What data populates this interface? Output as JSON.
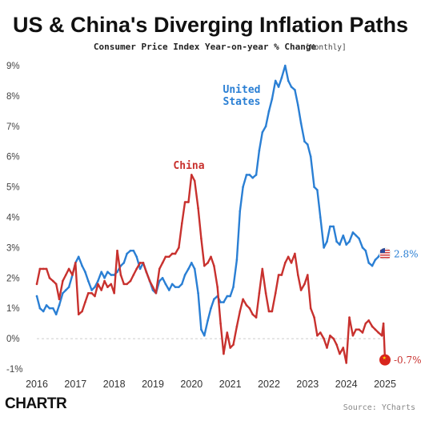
{
  "chart_data": {
    "type": "line",
    "title": "US & China's Diverging Inflation Paths",
    "subtitle": "Consumer Price Index Year-on-year % Change",
    "subtitle_note": "[Monthly]",
    "ylim": [
      -1,
      9
    ],
    "y_ticks": [
      "9%",
      "8%",
      "7%",
      "6%",
      "5%",
      "4%",
      "3%",
      "2%",
      "1%",
      "0%",
      "-1%"
    ],
    "x_ticks": [
      "2016",
      "2017",
      "2018",
      "2019",
      "2020",
      "2021",
      "2022",
      "2023",
      "2024",
      "2025"
    ],
    "grid": false,
    "series": [
      {
        "name": "United States",
        "label_lines": [
          "United",
          "States"
        ],
        "color": "#2a7fd4",
        "end_label": "2.8%",
        "points": [
          [
            2016.0,
            1.4
          ],
          [
            2016.08,
            1.0
          ],
          [
            2016.17,
            0.9
          ],
          [
            2016.25,
            1.1
          ],
          [
            2016.33,
            1.0
          ],
          [
            2016.42,
            1.0
          ],
          [
            2016.5,
            0.8
          ],
          [
            2016.58,
            1.1
          ],
          [
            2016.67,
            1.5
          ],
          [
            2016.75,
            1.6
          ],
          [
            2016.83,
            1.7
          ],
          [
            2016.92,
            2.1
          ],
          [
            2017.0,
            2.5
          ],
          [
            2017.08,
            2.7
          ],
          [
            2017.17,
            2.4
          ],
          [
            2017.25,
            2.2
          ],
          [
            2017.33,
            1.9
          ],
          [
            2017.42,
            1.6
          ],
          [
            2017.5,
            1.7
          ],
          [
            2017.58,
            1.9
          ],
          [
            2017.67,
            2.2
          ],
          [
            2017.75,
            2.0
          ],
          [
            2017.83,
            2.2
          ],
          [
            2017.92,
            2.1
          ],
          [
            2018.0,
            2.1
          ],
          [
            2018.08,
            2.2
          ],
          [
            2018.17,
            2.4
          ],
          [
            2018.25,
            2.5
          ],
          [
            2018.33,
            2.8
          ],
          [
            2018.42,
            2.9
          ],
          [
            2018.5,
            2.9
          ],
          [
            2018.58,
            2.7
          ],
          [
            2018.67,
            2.3
          ],
          [
            2018.75,
            2.5
          ],
          [
            2018.83,
            2.2
          ],
          [
            2018.92,
            1.9
          ],
          [
            2019.0,
            1.6
          ],
          [
            2019.08,
            1.5
          ],
          [
            2019.17,
            1.9
          ],
          [
            2019.25,
            2.0
          ],
          [
            2019.33,
            1.8
          ],
          [
            2019.42,
            1.6
          ],
          [
            2019.5,
            1.8
          ],
          [
            2019.58,
            1.7
          ],
          [
            2019.67,
            1.7
          ],
          [
            2019.75,
            1.8
          ],
          [
            2019.83,
            2.1
          ],
          [
            2019.92,
            2.3
          ],
          [
            2020.0,
            2.5
          ],
          [
            2020.08,
            2.3
          ],
          [
            2020.17,
            1.5
          ],
          [
            2020.25,
            0.3
          ],
          [
            2020.33,
            0.1
          ],
          [
            2020.42,
            0.6
          ],
          [
            2020.5,
            1.0
          ],
          [
            2020.58,
            1.3
          ],
          [
            2020.67,
            1.4
          ],
          [
            2020.75,
            1.2
          ],
          [
            2020.83,
            1.2
          ],
          [
            2020.92,
            1.4
          ],
          [
            2021.0,
            1.4
          ],
          [
            2021.08,
            1.7
          ],
          [
            2021.17,
            2.6
          ],
          [
            2021.25,
            4.2
          ],
          [
            2021.33,
            5.0
          ],
          [
            2021.42,
            5.4
          ],
          [
            2021.5,
            5.4
          ],
          [
            2021.58,
            5.3
          ],
          [
            2021.67,
            5.4
          ],
          [
            2021.75,
            6.2
          ],
          [
            2021.83,
            6.8
          ],
          [
            2021.92,
            7.0
          ],
          [
            2022.0,
            7.5
          ],
          [
            2022.08,
            7.9
          ],
          [
            2022.17,
            8.5
          ],
          [
            2022.25,
            8.3
          ],
          [
            2022.33,
            8.6
          ],
          [
            2022.42,
            9.0
          ],
          [
            2022.5,
            8.5
          ],
          [
            2022.58,
            8.3
          ],
          [
            2022.67,
            8.2
          ],
          [
            2022.75,
            7.7
          ],
          [
            2022.83,
            7.1
          ],
          [
            2022.92,
            6.5
          ],
          [
            2023.0,
            6.4
          ],
          [
            2023.08,
            6.0
          ],
          [
            2023.17,
            5.0
          ],
          [
            2023.25,
            4.9
          ],
          [
            2023.33,
            4.0
          ],
          [
            2023.42,
            3.0
          ],
          [
            2023.5,
            3.2
          ],
          [
            2023.58,
            3.7
          ],
          [
            2023.67,
            3.7
          ],
          [
            2023.75,
            3.2
          ],
          [
            2023.83,
            3.1
          ],
          [
            2023.92,
            3.4
          ],
          [
            2024.0,
            3.1
          ],
          [
            2024.08,
            3.2
          ],
          [
            2024.17,
            3.5
          ],
          [
            2024.25,
            3.4
          ],
          [
            2024.33,
            3.3
          ],
          [
            2024.42,
            3.0
          ],
          [
            2024.5,
            2.9
          ],
          [
            2024.58,
            2.5
          ],
          [
            2024.67,
            2.4
          ],
          [
            2024.75,
            2.6
          ],
          [
            2024.83,
            2.7
          ],
          [
            2024.92,
            2.9
          ],
          [
            2025.0,
            2.8
          ]
        ]
      },
      {
        "name": "China",
        "label_lines": [
          "China"
        ],
        "color": "#c8312e",
        "end_label": "-0.7%",
        "points": [
          [
            2016.0,
            1.8
          ],
          [
            2016.08,
            2.3
          ],
          [
            2016.17,
            2.3
          ],
          [
            2016.25,
            2.3
          ],
          [
            2016.33,
            2.0
          ],
          [
            2016.42,
            1.9
          ],
          [
            2016.5,
            1.8
          ],
          [
            2016.58,
            1.3
          ],
          [
            2016.67,
            1.9
          ],
          [
            2016.75,
            2.1
          ],
          [
            2016.83,
            2.3
          ],
          [
            2016.92,
            2.1
          ],
          [
            2017.0,
            2.5
          ],
          [
            2017.08,
            0.8
          ],
          [
            2017.17,
            0.9
          ],
          [
            2017.25,
            1.2
          ],
          [
            2017.33,
            1.5
          ],
          [
            2017.42,
            1.5
          ],
          [
            2017.5,
            1.4
          ],
          [
            2017.58,
            1.8
          ],
          [
            2017.67,
            1.6
          ],
          [
            2017.75,
            1.9
          ],
          [
            2017.83,
            1.7
          ],
          [
            2017.92,
            1.8
          ],
          [
            2018.0,
            1.5
          ],
          [
            2018.08,
            2.9
          ],
          [
            2018.17,
            2.1
          ],
          [
            2018.25,
            1.8
          ],
          [
            2018.33,
            1.8
          ],
          [
            2018.42,
            1.9
          ],
          [
            2018.5,
            2.1
          ],
          [
            2018.58,
            2.3
          ],
          [
            2018.67,
            2.5
          ],
          [
            2018.75,
            2.5
          ],
          [
            2018.83,
            2.2
          ],
          [
            2018.92,
            1.9
          ],
          [
            2019.0,
            1.7
          ],
          [
            2019.08,
            1.5
          ],
          [
            2019.17,
            2.3
          ],
          [
            2019.25,
            2.5
          ],
          [
            2019.33,
            2.7
          ],
          [
            2019.42,
            2.7
          ],
          [
            2019.5,
            2.8
          ],
          [
            2019.58,
            2.8
          ],
          [
            2019.67,
            3.0
          ],
          [
            2019.75,
            3.8
          ],
          [
            2019.83,
            4.5
          ],
          [
            2019.92,
            4.5
          ],
          [
            2020.0,
            5.4
          ],
          [
            2020.08,
            5.2
          ],
          [
            2020.17,
            4.3
          ],
          [
            2020.25,
            3.3
          ],
          [
            2020.33,
            2.4
          ],
          [
            2020.42,
            2.5
          ],
          [
            2020.5,
            2.7
          ],
          [
            2020.58,
            2.4
          ],
          [
            2020.67,
            1.7
          ],
          [
            2020.75,
            0.5
          ],
          [
            2020.83,
            -0.5
          ],
          [
            2020.92,
            0.2
          ],
          [
            2021.0,
            -0.3
          ],
          [
            2021.08,
            -0.2
          ],
          [
            2021.17,
            0.4
          ],
          [
            2021.25,
            0.9
          ],
          [
            2021.33,
            1.3
          ],
          [
            2021.42,
            1.1
          ],
          [
            2021.5,
            1.0
          ],
          [
            2021.58,
            0.8
          ],
          [
            2021.67,
            0.7
          ],
          [
            2021.75,
            1.5
          ],
          [
            2021.83,
            2.3
          ],
          [
            2021.92,
            1.5
          ],
          [
            2022.0,
            0.9
          ],
          [
            2022.08,
            0.9
          ],
          [
            2022.17,
            1.5
          ],
          [
            2022.25,
            2.1
          ],
          [
            2022.33,
            2.1
          ],
          [
            2022.42,
            2.5
          ],
          [
            2022.5,
            2.7
          ],
          [
            2022.58,
            2.5
          ],
          [
            2022.67,
            2.8
          ],
          [
            2022.75,
            2.1
          ],
          [
            2022.83,
            1.6
          ],
          [
            2022.92,
            1.8
          ],
          [
            2023.0,
            2.1
          ],
          [
            2023.08,
            1.0
          ],
          [
            2023.17,
            0.7
          ],
          [
            2023.25,
            0.1
          ],
          [
            2023.33,
            0.2
          ],
          [
            2023.42,
            0.0
          ],
          [
            2023.5,
            -0.3
          ],
          [
            2023.58,
            0.1
          ],
          [
            2023.67,
            0.0
          ],
          [
            2023.75,
            -0.2
          ],
          [
            2023.83,
            -0.5
          ],
          [
            2023.92,
            -0.3
          ],
          [
            2024.0,
            -0.8
          ],
          [
            2024.08,
            0.7
          ],
          [
            2024.17,
            0.1
          ],
          [
            2024.25,
            0.3
          ],
          [
            2024.33,
            0.3
          ],
          [
            2024.42,
            0.2
          ],
          [
            2024.5,
            0.5
          ],
          [
            2024.58,
            0.6
          ],
          [
            2024.67,
            0.4
          ],
          [
            2024.75,
            0.3
          ],
          [
            2024.83,
            0.2
          ],
          [
            2024.92,
            0.1
          ],
          [
            2024.96,
            0.5
          ],
          [
            2025.0,
            -0.7
          ]
        ]
      }
    ],
    "annotations": {
      "source": "Source: YCharts",
      "brand": "CHARTR"
    }
  }
}
